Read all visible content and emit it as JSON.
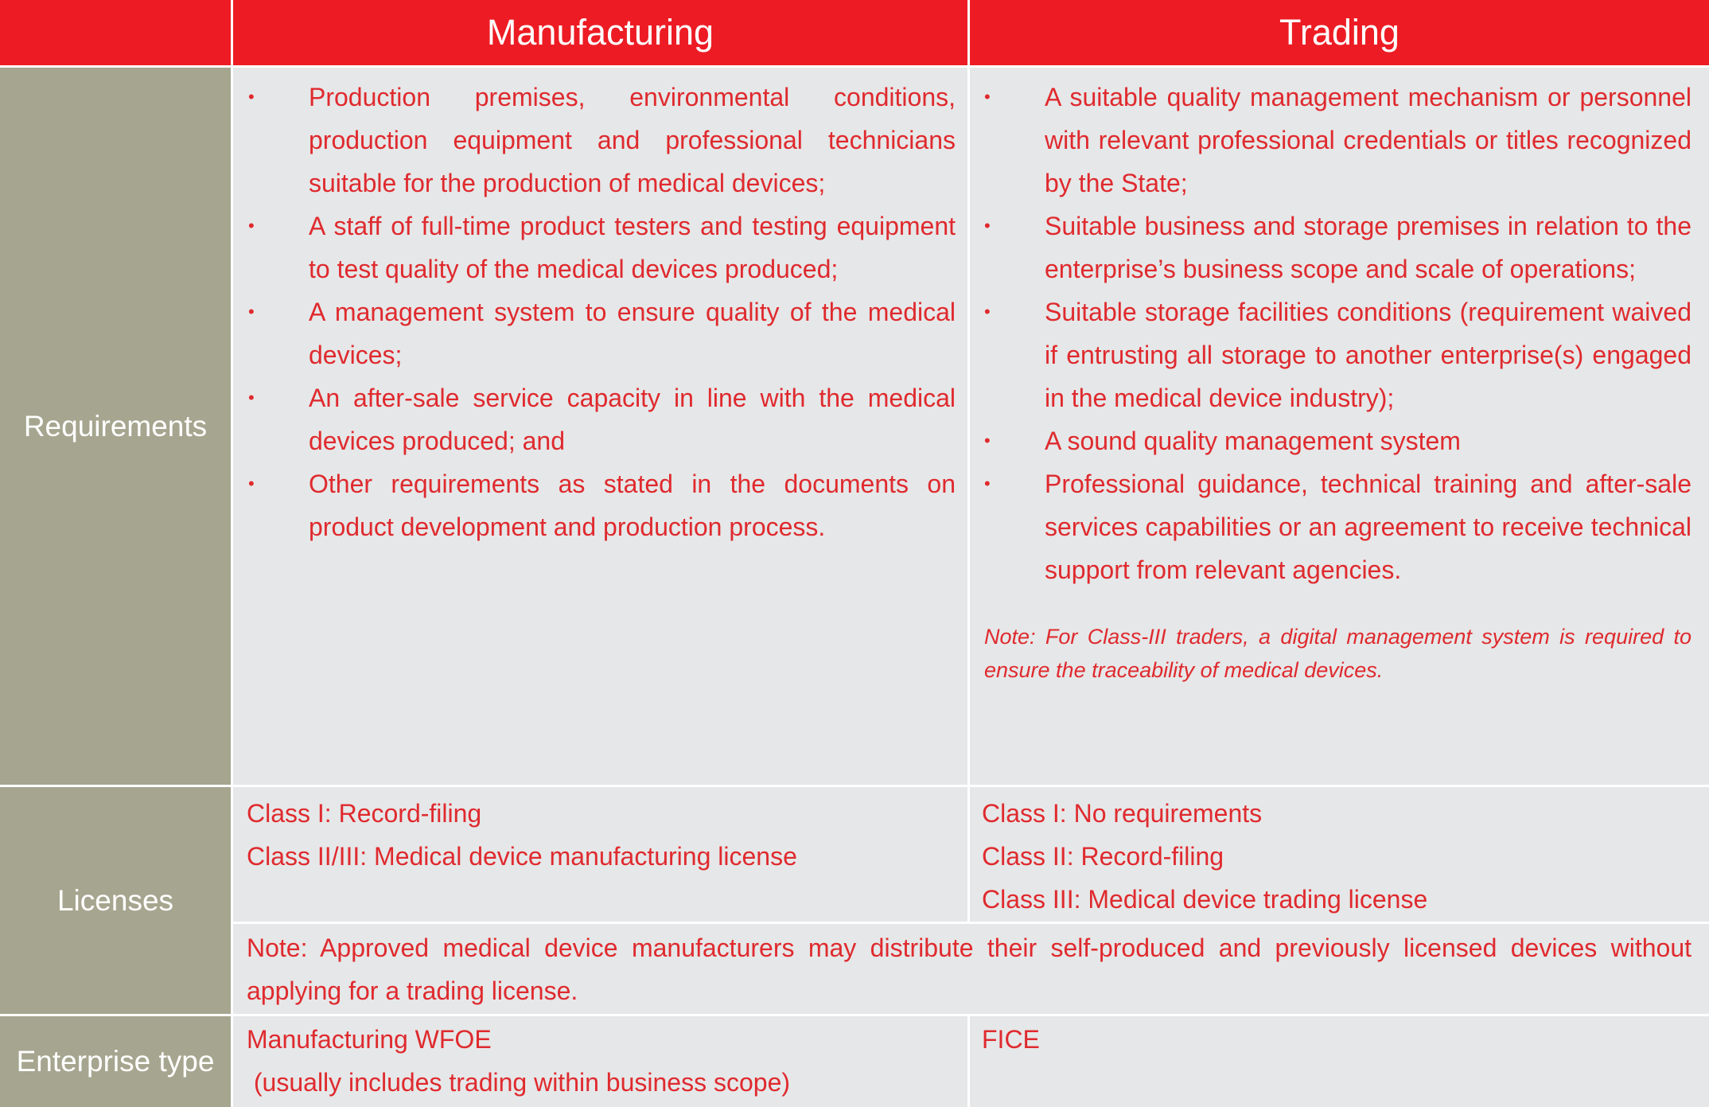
{
  "table": {
    "columns": [
      "Manufacturing",
      "Trading"
    ],
    "requirements": {
      "label": "Requirements",
      "manufacturing": [
        "Production premises, environmental conditions, production equipment and professional technicians suitable for the production of medical devices;",
        "A staff of full-time product testers and testing equipment to test quality of the medical devices produced;",
        "A management system to ensure quality of the medical devices;",
        "An after-sale service capacity in line with the medical devices produced; and",
        "Other requirements as stated in the documents on product development and production process."
      ],
      "trading": [
        "A suitable quality management mechanism or personnel with relevant professional credentials or titles recognized by the State;",
        "Suitable business and storage premises in relation to the enterprise’s business scope and scale of operations;",
        "Suitable storage facilities conditions (requirement waived if entrusting all storage to another enterprise(s) engaged in the medical device industry);",
        "A sound quality management system",
        "Professional guidance, technical training and after-sale services capabilities or an agreement to receive technical support from relevant agencies."
      ],
      "note": "Note: For Class-III traders, a digital management system is required to ensure the traceability of medical devices."
    },
    "licenses": {
      "label": "Licenses",
      "manufacturing": [
        "Class I: Record-filing",
        "Class II/III: Medical device manufacturing license"
      ],
      "trading": [
        "Class I: No requirements",
        "Class II: Record-filing",
        "Class III: Medical device trading license"
      ],
      "note": "Note: Approved medical device manufacturers may distribute their self-produced and previously licensed devices without applying for a trading license."
    },
    "enterprise_type": {
      "label": "Enterprise type",
      "manufacturing": [
        "Manufacturing WFOE",
        " (usually includes trading within business scope)"
      ],
      "trading": [
        "FICE"
      ]
    }
  }
}
